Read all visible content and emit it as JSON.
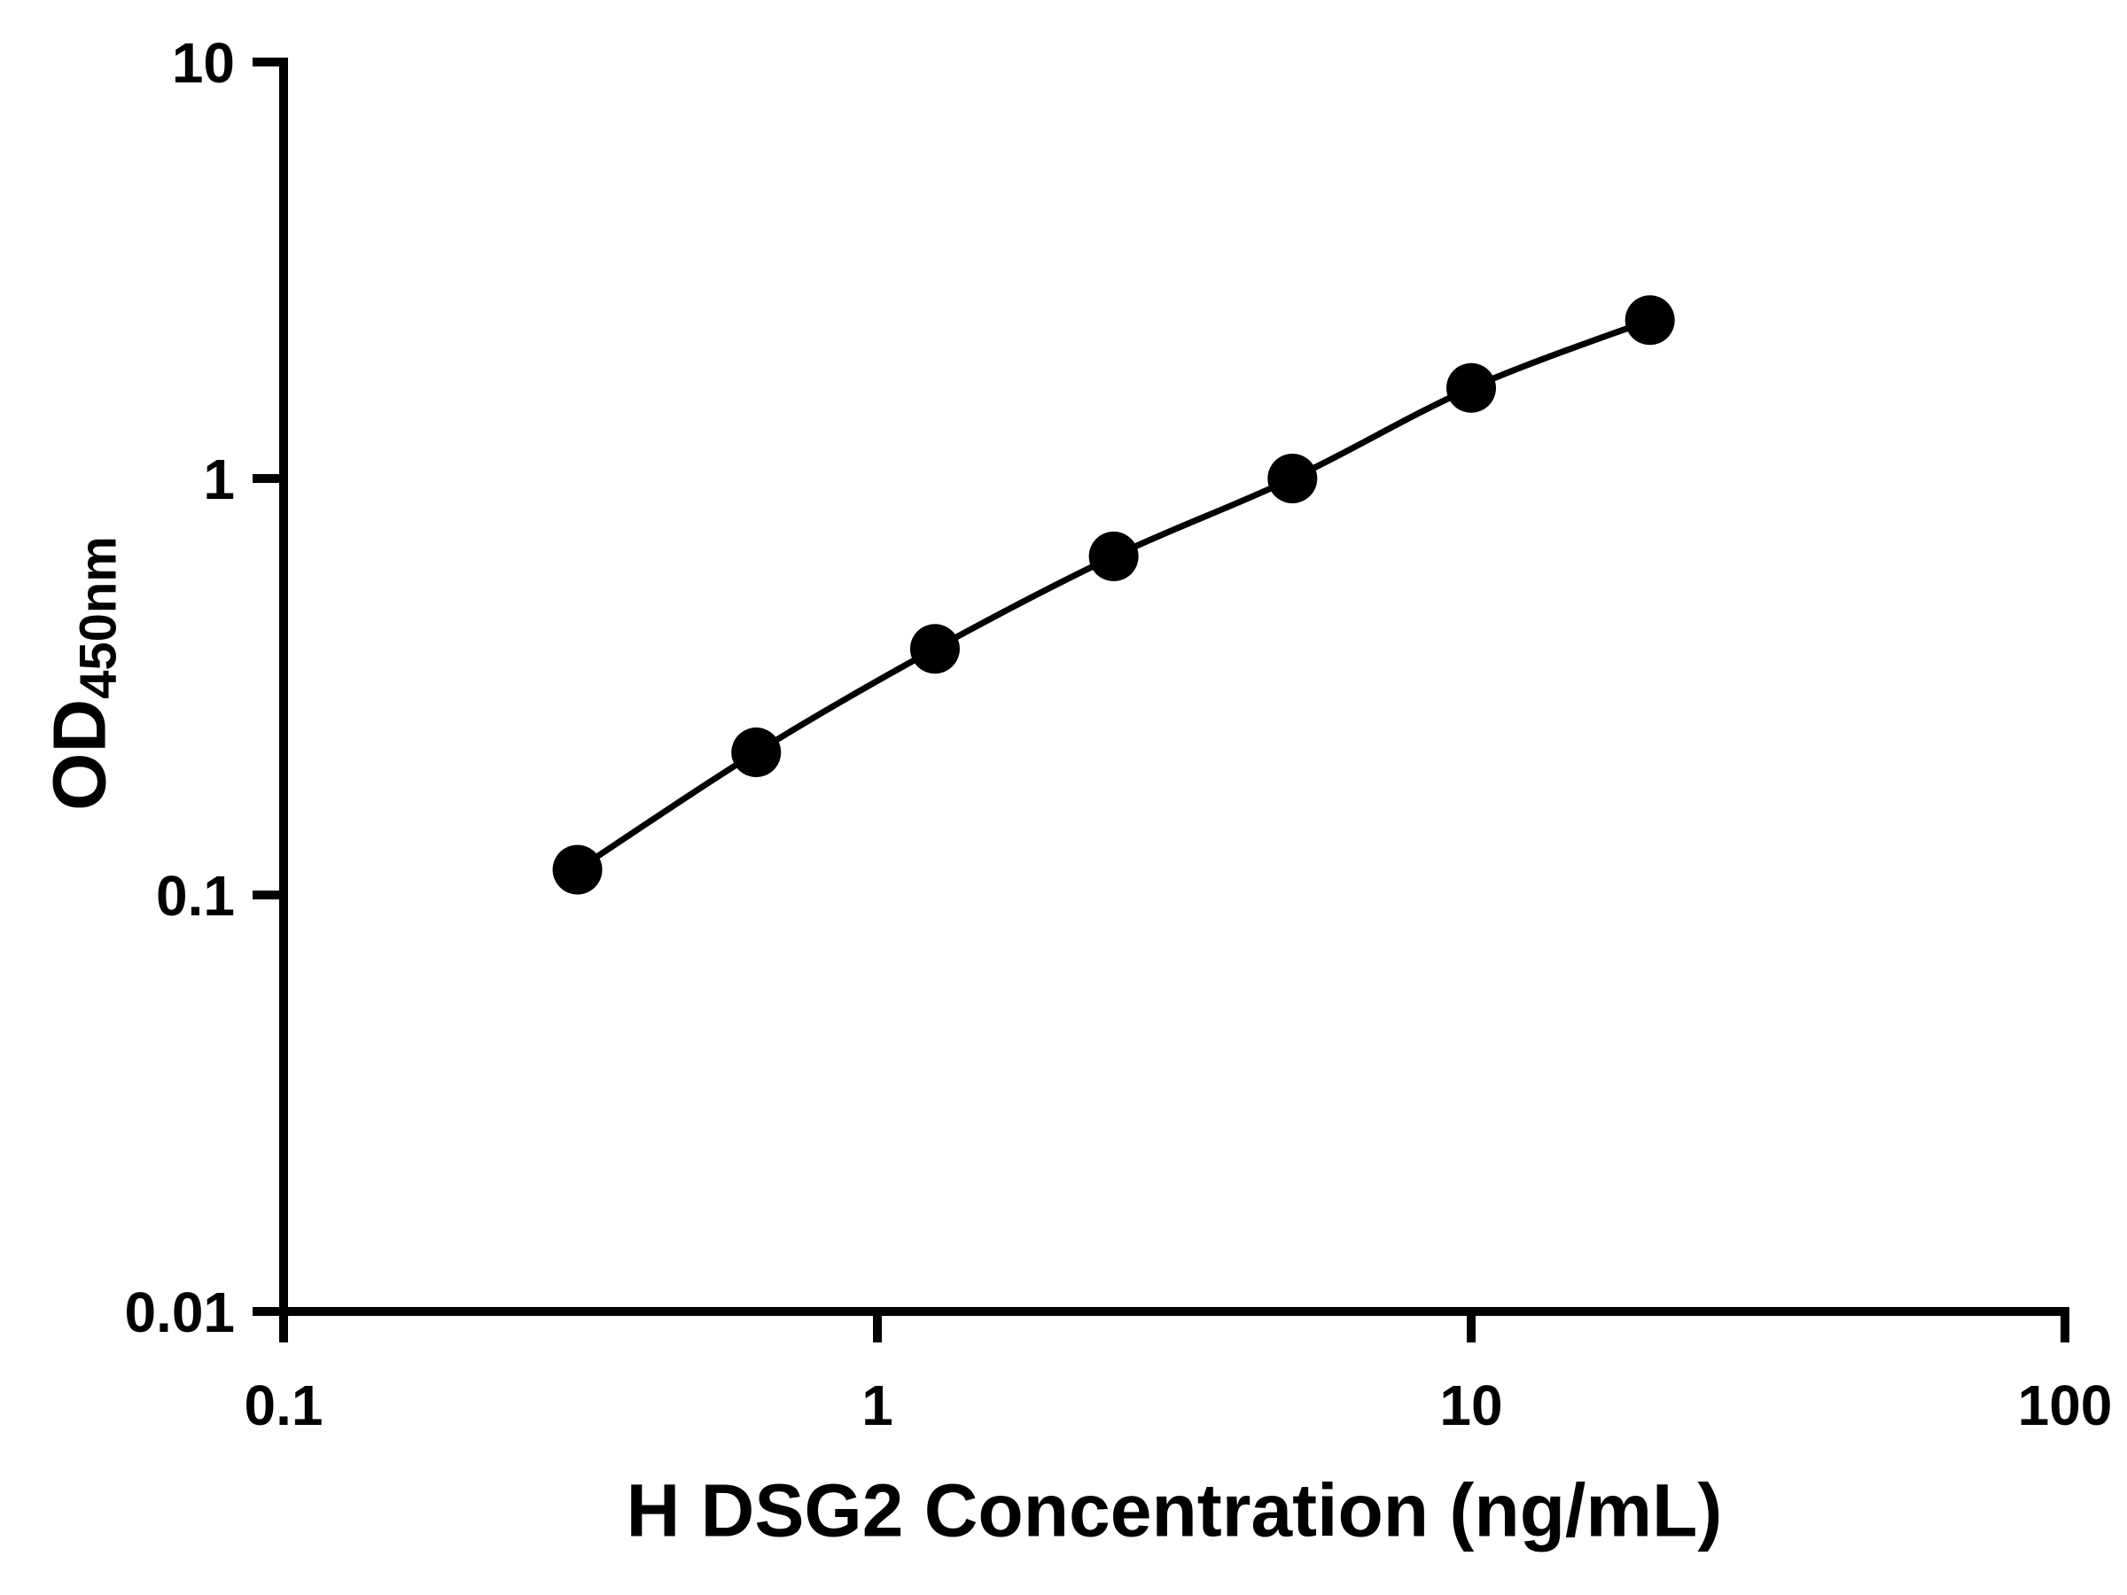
{
  "figure": {
    "background_color": "#ffffff"
  },
  "chart_data": {
    "type": "scatter",
    "xlabel": "H DSG2 Concentration (ng/mL)",
    "ylabel_main": "OD",
    "ylabel_sub": "450nm",
    "x_scale": "log",
    "y_scale": "log",
    "xlim": [
      0.1,
      100
    ],
    "ylim": [
      0.01,
      10
    ],
    "x_ticks": [
      {
        "value": 0.1,
        "label": "0.1"
      },
      {
        "value": 1,
        "label": "1"
      },
      {
        "value": 10,
        "label": "10"
      },
      {
        "value": 100,
        "label": "100"
      }
    ],
    "y_ticks": [
      {
        "value": 0.01,
        "label": "0.01"
      },
      {
        "value": 0.1,
        "label": "0.1"
      },
      {
        "value": 1,
        "label": "1"
      },
      {
        "value": 10,
        "label": "10"
      }
    ],
    "x": [
      0.3125,
      0.625,
      1.25,
      2.5,
      5,
      10,
      20
    ],
    "y": [
      0.115,
      0.22,
      0.39,
      0.65,
      1.0,
      1.65,
      2.4
    ],
    "marker_color": "#000000",
    "line_color": "#000000",
    "axis_color": "#000000",
    "grid": false,
    "legend": "none"
  }
}
